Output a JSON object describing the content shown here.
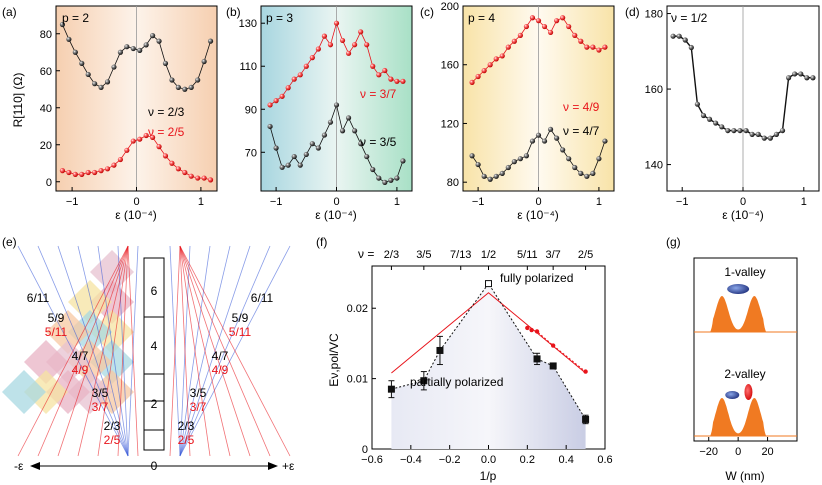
{
  "figure": {
    "panels": {
      "a": {
        "letter": "(a)",
        "corner_label": "p = 2",
        "ylabel": "R[110] (Ω)",
        "xlabel": "ε (10⁻⁴)"
      },
      "b": {
        "letter": "(b)",
        "corner_label": "p = 3",
        "xlabel": "ε (10⁻⁴)"
      },
      "c": {
        "letter": "(c)",
        "corner_label": "p = 4",
        "xlabel": "ε (10⁻⁴)"
      },
      "d": {
        "letter": "(d)",
        "corner_label": "ν = 1/2",
        "xlabel": "ε (10⁻⁴)"
      },
      "e": {
        "letter": "(e)"
      },
      "f": {
        "letter": "(f)"
      },
      "g": {
        "letter": "(g)"
      }
    },
    "colors": {
      "black_series": "#111111",
      "red_series": "#e8141b",
      "orange_bg": "#f9d9c0",
      "blue_bg": "#b9dde6",
      "yellow_bg": "#f8e6b3",
      "pink_bg": "#d98aa2",
      "orange_fill": "#f07a22",
      "navy": "#2c3c7a",
      "line_red": "#e8141b"
    }
  },
  "chart_data": [
    {
      "id": "a",
      "type": "scatter",
      "xlabel": "ε (10⁻⁴)",
      "ylabel": "R[110] (Ω)",
      "xlim": [
        -1.25,
        1.25
      ],
      "ylim": [
        -5,
        95
      ],
      "xticks": [
        -1,
        0,
        1
      ],
      "yticks": [
        0,
        20,
        40,
        60,
        80
      ],
      "background": "orange-gradient",
      "series": [
        {
          "name": "ν = 2/3",
          "color": "#111111",
          "x": [
            -1.15,
            -1.05,
            -0.95,
            -0.85,
            -0.75,
            -0.65,
            -0.55,
            -0.45,
            -0.35,
            -0.25,
            -0.15,
            -0.05,
            0.05,
            0.15,
            0.25,
            0.35,
            0.45,
            0.55,
            0.65,
            0.75,
            0.85,
            0.95,
            1.05,
            1.15
          ],
          "y": [
            85,
            77,
            70,
            64,
            58,
            53,
            51,
            54,
            62,
            70,
            73,
            72,
            71,
            74,
            79,
            76,
            64,
            55,
            51,
            50,
            51,
            55,
            65,
            76
          ]
        },
        {
          "name": "ν = 2/5",
          "color": "#e8141b",
          "x": [
            -1.15,
            -1.05,
            -0.95,
            -0.85,
            -0.75,
            -0.65,
            -0.55,
            -0.45,
            -0.35,
            -0.25,
            -0.15,
            -0.05,
            0.05,
            0.15,
            0.25,
            0.35,
            0.45,
            0.55,
            0.65,
            0.75,
            0.85,
            0.95,
            1.05,
            1.15
          ],
          "y": [
            6,
            5,
            4,
            4,
            5,
            5,
            6,
            7,
            9,
            12,
            17,
            22,
            23,
            25,
            24,
            19,
            14,
            10,
            7,
            5,
            3,
            2,
            2,
            1
          ]
        }
      ],
      "annotations": [
        "p = 2",
        "ν = 2/3",
        "ν = 2/5"
      ]
    },
    {
      "id": "b",
      "type": "scatter",
      "xlabel": "ε (10⁻⁴)",
      "xlim": [
        -1.25,
        1.25
      ],
      "ylim": [
        52,
        138
      ],
      "xticks": [
        -1,
        0,
        1
      ],
      "yticks": [
        50,
        70,
        90,
        110,
        130
      ],
      "background": "blue-gradient",
      "series": [
        {
          "name": "ν = 3/7",
          "color": "#e8141b",
          "x": [
            -1.1,
            -1.0,
            -0.9,
            -0.8,
            -0.7,
            -0.6,
            -0.5,
            -0.4,
            -0.3,
            -0.2,
            -0.1,
            0.0,
            0.1,
            0.2,
            0.3,
            0.4,
            0.5,
            0.6,
            0.7,
            0.8,
            0.9,
            1.0,
            1.1
          ],
          "y": [
            92,
            94,
            96,
            100,
            104,
            106,
            110,
            114,
            118,
            124,
            120,
            130,
            122,
            116,
            120,
            126,
            120,
            110,
            106,
            108,
            104,
            103,
            103
          ]
        },
        {
          "name": "ν = 3/5",
          "color": "#111111",
          "x": [
            -1.1,
            -1.0,
            -0.9,
            -0.8,
            -0.7,
            -0.6,
            -0.5,
            -0.4,
            -0.3,
            -0.2,
            -0.1,
            0.0,
            0.1,
            0.2,
            0.3,
            0.4,
            0.5,
            0.6,
            0.7,
            0.8,
            0.9,
            1.0,
            1.1
          ],
          "y": [
            82,
            72,
            63,
            64,
            68,
            64,
            69,
            74,
            72,
            78,
            84,
            92,
            80,
            86,
            80,
            74,
            68,
            62,
            58,
            56,
            57,
            58,
            66
          ]
        }
      ],
      "annotations": [
        "p = 3",
        "ν = 3/7",
        "ν = 3/5"
      ]
    },
    {
      "id": "c",
      "type": "scatter",
      "xlabel": "ε (10⁻⁴)",
      "xlim": [
        -1.25,
        1.25
      ],
      "ylim": [
        74,
        200
      ],
      "xticks": [
        -1,
        0,
        1
      ],
      "yticks": [
        80,
        120,
        160,
        200
      ],
      "background": "yellow-gradient",
      "series": [
        {
          "name": "ν = 4/9",
          "color": "#e8141b",
          "x": [
            -1.1,
            -1.0,
            -0.9,
            -0.8,
            -0.7,
            -0.6,
            -0.5,
            -0.4,
            -0.3,
            -0.2,
            -0.1,
            0.0,
            0.1,
            0.2,
            0.3,
            0.4,
            0.5,
            0.6,
            0.7,
            0.8,
            0.9,
            1.0,
            1.1
          ],
          "y": [
            148,
            152,
            156,
            160,
            164,
            166,
            172,
            176,
            180,
            186,
            192,
            190,
            186,
            182,
            190,
            192,
            186,
            180,
            176,
            172,
            172,
            170,
            172
          ]
        },
        {
          "name": "ν = 4/7",
          "color": "#111111",
          "x": [
            -1.1,
            -1.0,
            -0.9,
            -0.8,
            -0.7,
            -0.6,
            -0.5,
            -0.4,
            -0.3,
            -0.2,
            -0.1,
            0.0,
            0.1,
            0.2,
            0.3,
            0.4,
            0.5,
            0.6,
            0.7,
            0.8,
            0.9,
            1.0,
            1.1
          ],
          "y": [
            98,
            92,
            84,
            82,
            84,
            86,
            90,
            94,
            96,
            98,
            108,
            112,
            108,
            116,
            110,
            102,
            96,
            90,
            86,
            84,
            86,
            96,
            108
          ]
        }
      ],
      "annotations": [
        "p = 4",
        "ν = 4/9",
        "ν = 4/7"
      ]
    },
    {
      "id": "d",
      "type": "line",
      "xlabel": "ε (10⁻⁴)",
      "xlim": [
        -1.25,
        1.25
      ],
      "ylim": [
        133,
        182
      ],
      "xticks": [
        -1,
        0,
        1
      ],
      "yticks": [
        140,
        160,
        180
      ],
      "background": "white",
      "series": [
        {
          "name": "ν = 1/2",
          "color": "#111111",
          "x": [
            -1.15,
            -1.05,
            -0.95,
            -0.85,
            -0.75,
            -0.65,
            -0.55,
            -0.45,
            -0.35,
            -0.25,
            -0.15,
            -0.05,
            0.05,
            0.15,
            0.25,
            0.35,
            0.45,
            0.55,
            0.65,
            0.75,
            0.85,
            0.95,
            1.05,
            1.15
          ],
          "y": [
            174,
            174,
            173,
            171,
            156,
            153,
            152,
            151,
            150,
            149,
            149,
            149,
            149,
            148,
            148,
            147,
            147,
            148,
            149,
            163,
            164,
            164,
            163,
            163
          ]
        }
      ],
      "annotations": [
        "ν = 1/2"
      ]
    },
    {
      "id": "f",
      "type": "scatter",
      "xlabel": "1/p",
      "ylabel": "Eν,pol/VC",
      "xlim": [
        -0.6,
        0.6
      ],
      "ylim": [
        0,
        0.026
      ],
      "xticks": [
        -0.6,
        -0.4,
        -0.2,
        0.0,
        0.2,
        0.4,
        0.6
      ],
      "yticks": [
        0,
        0.01,
        0.02
      ],
      "top_axis_labels": [
        "2/3",
        "3/5",
        "7/13",
        "1/2",
        "5/11",
        "3/7",
        "2/5"
      ],
      "top_axis_positions": [
        -0.5,
        -0.333,
        -0.143,
        0.0,
        0.2,
        0.333,
        0.5
      ],
      "top_axis_prefix": "ν =",
      "series": [
        {
          "name": "partially polarized",
          "color": "#111111",
          "x": [
            -0.5,
            -0.333,
            -0.25,
            0.0,
            0.25,
            0.333,
            0.5
          ],
          "y": [
            0.0085,
            0.0097,
            0.014,
            0.0235,
            0.0128,
            0.0118,
            0.0042
          ],
          "err": [
            0.0012,
            0.0013,
            0.002,
            0.0003,
            0.0008,
            0.0004,
            0.0006
          ]
        },
        {
          "name": "fully polarized",
          "color": "#e8141b",
          "x": [
            0.2,
            0.222,
            0.25,
            0.333,
            0.5
          ],
          "y": [
            0.0172,
            0.0169,
            0.0167,
            0.0147,
            0.011
          ]
        }
      ],
      "line_red": {
        "x": [
          -0.5,
          0.0,
          0.5
        ],
        "y": [
          0.0108,
          0.0222,
          0.0108
        ]
      },
      "annotations": [
        "fully polarized",
        "partially polarized"
      ]
    },
    {
      "id": "g",
      "type": "area",
      "xlabel": "W (nm)",
      "xlim": [
        -30,
        40
      ],
      "xticks": [
        -20,
        0,
        20
      ],
      "panels": [
        {
          "title": "1-valley"
        },
        {
          "title": "2-valley"
        }
      ]
    }
  ],
  "diagram_e": {
    "column_labels": [
      "6",
      "4",
      "2",
      "p"
    ],
    "left_labels": [
      {
        "black": "6/11"
      },
      {
        "black": "5/9",
        "red": "5/11"
      },
      {
        "black": "4/7",
        "red": "4/9"
      },
      {
        "black": "3/5",
        "red": "3/7"
      },
      {
        "black": "2/3",
        "red": "2/5"
      }
    ],
    "right_labels": [
      {
        "black": "6/11"
      },
      {
        "black": "5/9",
        "red": "5/11"
      },
      {
        "black": "4/7",
        "red": "4/9"
      },
      {
        "black": "3/5",
        "red": "3/7"
      },
      {
        "black": "2/3",
        "red": "2/5"
      }
    ],
    "axis": {
      "left": "-ε",
      "center": "0",
      "right": "+ε"
    }
  }
}
